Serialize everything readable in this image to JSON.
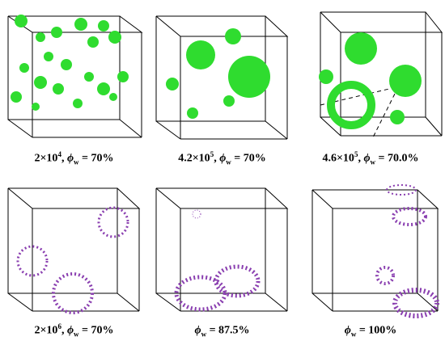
{
  "panels": [
    {
      "id": "a",
      "caption": {
        "base": "2×10",
        "exp": "4",
        "sep": ", ",
        "phi": "ϕ",
        "sub": "w",
        "eq": " = 70%"
      },
      "cluster_color": "#2fdc2f",
      "style": "green-many"
    },
    {
      "id": "b",
      "caption": {
        "base": "4.2×10",
        "exp": "5",
        "sep": ", ",
        "phi": "ϕ",
        "sub": "w",
        "eq": " = 70%"
      },
      "cluster_color": "#2fdc2f",
      "style": "green-few"
    },
    {
      "id": "c",
      "caption": {
        "base": "4.6×10",
        "exp": "5",
        "sep": ", ",
        "phi": "ϕ",
        "sub": "w",
        "eq": " = 70.0%"
      },
      "cluster_color": "#2fdc2f",
      "style": "green-ring"
    },
    {
      "id": "d",
      "caption": {
        "base": "2×10",
        "exp": "6",
        "sep": ", ",
        "phi": "ϕ",
        "sub": "w",
        "eq": " = 70%"
      },
      "cluster_color": "#8a3fb0",
      "style": "purple"
    },
    {
      "id": "e",
      "caption": {
        "base": "",
        "exp": "",
        "sep": "",
        "phi": "ϕ",
        "sub": "w",
        "eq": " = 87.5%"
      },
      "cluster_color": "#8a3fb0",
      "style": "purple"
    },
    {
      "id": "f",
      "caption": {
        "base": "",
        "exp": "",
        "sep": "",
        "phi": "ϕ",
        "sub": "w",
        "eq": " = 100%"
      },
      "cluster_color": "#8a3fb0",
      "style": "purple"
    }
  ]
}
